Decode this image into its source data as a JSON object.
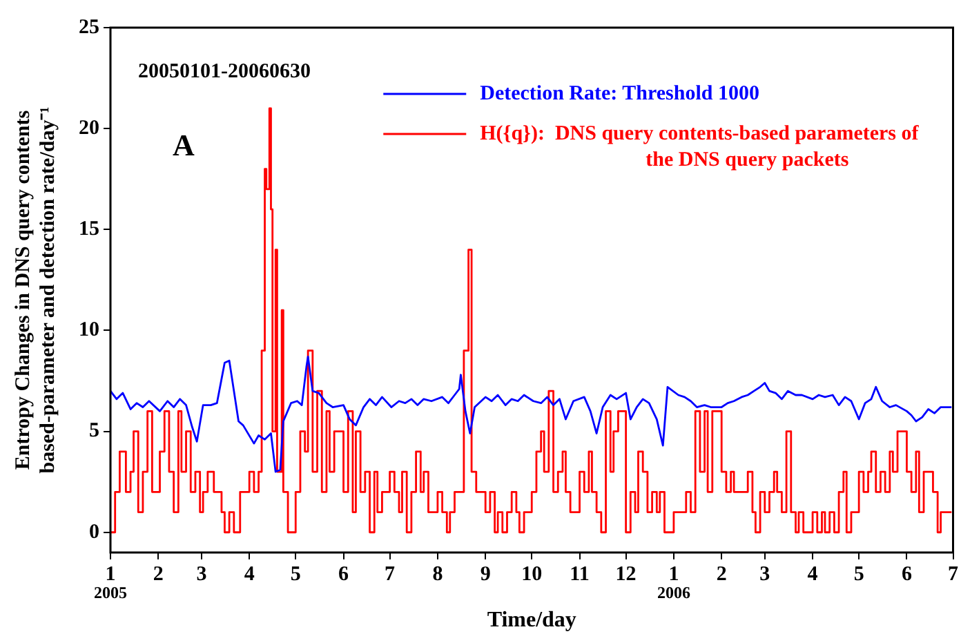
{
  "chart_data": {
    "type": "line",
    "xlabel": "Time/day",
    "ylabel": "Entropy Changes in DNS query contents based-parameter and detection rate/day⁻¹",
    "xlim": [
      "2005-01-01",
      "2006-07-01"
    ],
    "xticks": [
      {
        "value": "2005-01-01",
        "label": "1"
      },
      {
        "value": "2005-02-01",
        "label": "2"
      },
      {
        "value": "2005-03-01",
        "label": "3"
      },
      {
        "value": "2005-04-01",
        "label": "4"
      },
      {
        "value": "2005-05-01",
        "label": "5"
      },
      {
        "value": "2005-06-01",
        "label": "6"
      },
      {
        "value": "2005-07-01",
        "label": "7"
      },
      {
        "value": "2005-08-01",
        "label": "8"
      },
      {
        "value": "2005-09-01",
        "label": "9"
      },
      {
        "value": "2005-10-01",
        "label": "10"
      },
      {
        "value": "2005-11-01",
        "label": "11"
      },
      {
        "value": "2005-12-01",
        "label": "12"
      },
      {
        "value": "2006-01-01",
        "label": "1"
      },
      {
        "value": "2006-02-01",
        "label": "2"
      },
      {
        "value": "2006-03-01",
        "label": "3"
      },
      {
        "value": "2006-04-01",
        "label": "4"
      },
      {
        "value": "2006-05-01",
        "label": "5"
      },
      {
        "value": "2006-06-01",
        "label": "6"
      },
      {
        "value": "2006-07-01",
        "label": "7"
      }
    ],
    "ylim": [
      -1,
      25
    ],
    "yticks": [
      0,
      5,
      10,
      15,
      20,
      25
    ],
    "legend": "top right",
    "annotations": [
      "20050101-20060630",
      "A",
      "2005",
      "2006"
    ],
    "series": [
      {
        "name": "Detection Rate: Threshold 1000",
        "color": "#0000ff",
        "x": [
          "2005-01-01",
          "2005-01-05",
          "2005-01-09",
          "2005-01-14",
          "2005-01-18",
          "2005-01-22",
          "2005-01-26",
          "2005-02-02",
          "2005-02-07",
          "2005-02-11",
          "2005-02-15",
          "2005-02-19",
          "2005-02-23",
          "2005-02-26",
          "2005-03-02",
          "2005-03-07",
          "2005-03-11",
          "2005-03-14",
          "2005-03-16",
          "2005-03-19",
          "2005-03-22",
          "2005-03-25",
          "2005-03-28",
          "2005-04-04",
          "2005-04-07",
          "2005-04-11",
          "2005-04-15",
          "2005-04-18",
          "2005-04-21",
          "2005-04-23",
          "2005-04-28",
          "2005-05-02",
          "2005-05-05",
          "2005-05-08",
          "2005-05-09",
          "2005-05-12",
          "2005-05-16",
          "2005-05-21",
          "2005-05-25",
          "2005-06-01",
          "2005-06-05",
          "2005-06-09",
          "2005-06-14",
          "2005-06-18",
          "2005-06-22",
          "2005-06-26",
          "2005-07-02",
          "2005-07-07",
          "2005-07-11",
          "2005-07-15",
          "2005-07-19",
          "2005-07-23",
          "2005-07-28",
          "2005-08-04",
          "2005-08-08",
          "2005-08-12",
          "2005-08-15",
          "2005-08-16",
          "2005-08-19",
          "2005-08-22",
          "2005-08-25",
          "2005-09-01",
          "2005-09-05",
          "2005-09-09",
          "2005-09-14",
          "2005-09-18",
          "2005-09-22",
          "2005-09-26",
          "2005-10-02",
          "2005-10-07",
          "2005-10-11",
          "2005-10-15",
          "2005-10-19",
          "2005-10-23",
          "2005-10-28",
          "2005-11-04",
          "2005-11-08",
          "2005-11-12",
          "2005-11-16",
          "2005-11-21",
          "2005-11-25",
          "2005-12-01",
          "2005-12-04",
          "2005-12-08",
          "2005-12-12",
          "2005-12-16",
          "2005-12-21",
          "2005-12-25",
          "2005-12-28",
          "2006-01-04",
          "2006-01-08",
          "2006-01-12",
          "2006-01-16",
          "2006-01-21",
          "2006-01-25",
          "2006-02-01",
          "2006-02-05",
          "2006-02-09",
          "2006-02-14",
          "2006-02-18",
          "2006-02-22",
          "2006-02-26",
          "2006-03-01",
          "2006-03-04",
          "2006-03-08",
          "2006-03-12",
          "2006-03-16",
          "2006-03-21",
          "2006-03-25",
          "2006-04-01",
          "2006-04-05",
          "2006-04-09",
          "2006-04-14",
          "2006-04-18",
          "2006-04-22",
          "2006-04-26",
          "2006-05-01",
          "2006-05-05",
          "2006-05-09",
          "2006-05-12",
          "2006-05-16",
          "2006-05-21",
          "2006-05-25",
          "2006-06-01",
          "2006-06-04",
          "2006-06-07",
          "2006-06-11",
          "2006-06-15",
          "2006-06-19",
          "2006-06-23",
          "2006-06-30"
        ],
        "values": [
          7.0,
          6.6,
          6.9,
          6.1,
          6.4,
          6.2,
          6.5,
          6.0,
          6.5,
          6.2,
          6.6,
          6.3,
          5.2,
          4.5,
          6.3,
          6.3,
          6.4,
          7.6,
          8.4,
          8.5,
          7.0,
          5.5,
          5.3,
          4.4,
          4.8,
          4.6,
          4.9,
          3.0,
          3.1,
          5.5,
          6.4,
          6.5,
          6.3,
          8.2,
          8.7,
          7.0,
          6.9,
          6.4,
          6.2,
          6.3,
          5.6,
          5.3,
          6.2,
          6.6,
          6.3,
          6.7,
          6.2,
          6.5,
          6.4,
          6.6,
          6.3,
          6.6,
          6.5,
          6.7,
          6.4,
          6.8,
          7.1,
          7.8,
          6.0,
          4.9,
          6.2,
          6.7,
          6.5,
          6.8,
          6.3,
          6.6,
          6.5,
          6.8,
          6.5,
          6.4,
          6.7,
          6.3,
          6.6,
          5.6,
          6.5,
          6.7,
          6.0,
          4.9,
          6.2,
          6.8,
          6.6,
          6.9,
          5.6,
          6.2,
          6.6,
          6.4,
          5.6,
          4.3,
          7.2,
          6.8,
          6.7,
          6.5,
          6.2,
          6.3,
          6.2,
          6.2,
          6.4,
          6.5,
          6.7,
          6.8,
          7.0,
          7.2,
          7.4,
          7.0,
          6.9,
          6.6,
          7.0,
          6.8,
          6.8,
          6.6,
          6.8,
          6.7,
          6.8,
          6.3,
          6.7,
          6.5,
          5.6,
          6.4,
          6.6,
          7.2,
          6.5,
          6.2,
          6.3,
          6.0,
          5.8,
          5.5,
          5.7,
          6.1,
          5.9,
          6.2,
          6.2
        ]
      },
      {
        "name": "H({q}):  DNS query contents-based parameters of the DNS query packets",
        "type": "step",
        "color": "#ff0000",
        "x": [
          "2005-01-01",
          "2005-01-04",
          "2005-01-07",
          "2005-01-11",
          "2005-01-14",
          "2005-01-16",
          "2005-01-19",
          "2005-01-22",
          "2005-01-25",
          "2005-01-28",
          "2005-02-02",
          "2005-02-05",
          "2005-02-08",
          "2005-02-11",
          "2005-02-14",
          "2005-02-16",
          "2005-02-19",
          "2005-02-22",
          "2005-02-25",
          "2005-02-28",
          "2005-03-02",
          "2005-03-05",
          "2005-03-09",
          "2005-03-14",
          "2005-03-16",
          "2005-03-19",
          "2005-03-22",
          "2005-03-26",
          "2005-04-01",
          "2005-04-04",
          "2005-04-07",
          "2005-04-09",
          "2005-04-11",
          "2005-04-12",
          "2005-04-14",
          "2005-04-15",
          "2005-04-16",
          "2005-04-18",
          "2005-04-19",
          "2005-04-22",
          "2005-04-23",
          "2005-04-26",
          "2005-05-01",
          "2005-05-04",
          "2005-05-07",
          "2005-05-09",
          "2005-05-12",
          "2005-05-15",
          "2005-05-18",
          "2005-05-21",
          "2005-05-23",
          "2005-05-26",
          "2005-06-01",
          "2005-06-04",
          "2005-06-07",
          "2005-06-09",
          "2005-06-12",
          "2005-06-15",
          "2005-06-18",
          "2005-06-21",
          "2005-06-23",
          "2005-06-26",
          "2005-07-01",
          "2005-07-04",
          "2005-07-07",
          "2005-07-09",
          "2005-07-12",
          "2005-07-15",
          "2005-07-18",
          "2005-07-21",
          "2005-07-23",
          "2005-07-26",
          "2005-08-01",
          "2005-08-04",
          "2005-08-07",
          "2005-08-09",
          "2005-08-12",
          "2005-08-15",
          "2005-08-18",
          "2005-08-21",
          "2005-08-23",
          "2005-08-26",
          "2005-09-01",
          "2005-09-04",
          "2005-09-07",
          "2005-09-09",
          "2005-09-12",
          "2005-09-15",
          "2005-09-18",
          "2005-09-21",
          "2005-09-23",
          "2005-09-26",
          "2005-10-01",
          "2005-10-04",
          "2005-10-07",
          "2005-10-09",
          "2005-10-12",
          "2005-10-15",
          "2005-10-18",
          "2005-10-21",
          "2005-10-23",
          "2005-10-26",
          "2005-11-01",
          "2005-11-04",
          "2005-11-07",
          "2005-11-09",
          "2005-11-12",
          "2005-11-15",
          "2005-11-18",
          "2005-11-21",
          "2005-11-23",
          "2005-11-26",
          "2005-12-01",
          "2005-12-04",
          "2005-12-07",
          "2005-12-09",
          "2005-12-12",
          "2005-12-15",
          "2005-12-18",
          "2005-12-21",
          "2005-12-23",
          "2005-12-26",
          "2006-01-01",
          "2006-01-04",
          "2006-01-07",
          "2006-01-09",
          "2006-01-12",
          "2006-01-15",
          "2006-01-18",
          "2006-01-21",
          "2006-01-23",
          "2006-01-26",
          "2006-02-01",
          "2006-02-04",
          "2006-02-07",
          "2006-02-09",
          "2006-02-12",
          "2006-02-15",
          "2006-02-18",
          "2006-02-21",
          "2006-02-23",
          "2006-02-26",
          "2006-03-01",
          "2006-03-04",
          "2006-03-07",
          "2006-03-09",
          "2006-03-12",
          "2006-03-15",
          "2006-03-18",
          "2006-03-21",
          "2006-03-23",
          "2006-03-26",
          "2006-04-01",
          "2006-04-04",
          "2006-04-07",
          "2006-04-09",
          "2006-04-12",
          "2006-04-15",
          "2006-04-18",
          "2006-04-21",
          "2006-04-23",
          "2006-04-26",
          "2006-05-01",
          "2006-05-04",
          "2006-05-07",
          "2006-05-09",
          "2006-05-12",
          "2006-05-15",
          "2006-05-18",
          "2006-05-21",
          "2006-05-23",
          "2006-05-26",
          "2006-06-01",
          "2006-06-04",
          "2006-06-07",
          "2006-06-09",
          "2006-06-12",
          "2006-06-15",
          "2006-06-18",
          "2006-06-21",
          "2006-06-23",
          "2006-06-26",
          "2006-06-30"
        ],
        "values": [
          0,
          2,
          4,
          2,
          3,
          5,
          1,
          3,
          6,
          2,
          4,
          6,
          3,
          1,
          6,
          3,
          5,
          2,
          3,
          1,
          2,
          3,
          2,
          1,
          0,
          1,
          0,
          2,
          3,
          2,
          3,
          9,
          18,
          17,
          21,
          16,
          5,
          14,
          3,
          11,
          2,
          0,
          2,
          5,
          4,
          9,
          3,
          7,
          2,
          6,
          3,
          5,
          2,
          6,
          1,
          5,
          2,
          3,
          0,
          3,
          1,
          2,
          3,
          2,
          1,
          3,
          0,
          2,
          4,
          2,
          3,
          1,
          2,
          1,
          0,
          1,
          2,
          2,
          9,
          14,
          3,
          2,
          1,
          2,
          0,
          1,
          0,
          1,
          2,
          1,
          0,
          1,
          2,
          4,
          5,
          3,
          7,
          2,
          3,
          4,
          2,
          1,
          3,
          2,
          4,
          2,
          1,
          0,
          6,
          3,
          5,
          6,
          0,
          2,
          1,
          4,
          3,
          1,
          2,
          1,
          2,
          0,
          1,
          1,
          1,
          2,
          1,
          6,
          3,
          6,
          2,
          6,
          3,
          2,
          3,
          2,
          2,
          2,
          3,
          1,
          0,
          2,
          1,
          2,
          3,
          2,
          1,
          5,
          1,
          0,
          1,
          0,
          1,
          0,
          1,
          0,
          1,
          0,
          2,
          3,
          0,
          1,
          3,
          2,
          3,
          4,
          2,
          3,
          2,
          4,
          3,
          5,
          3,
          2,
          4,
          1,
          3,
          3,
          2,
          0,
          1,
          1,
          1
        ]
      }
    ]
  }
}
